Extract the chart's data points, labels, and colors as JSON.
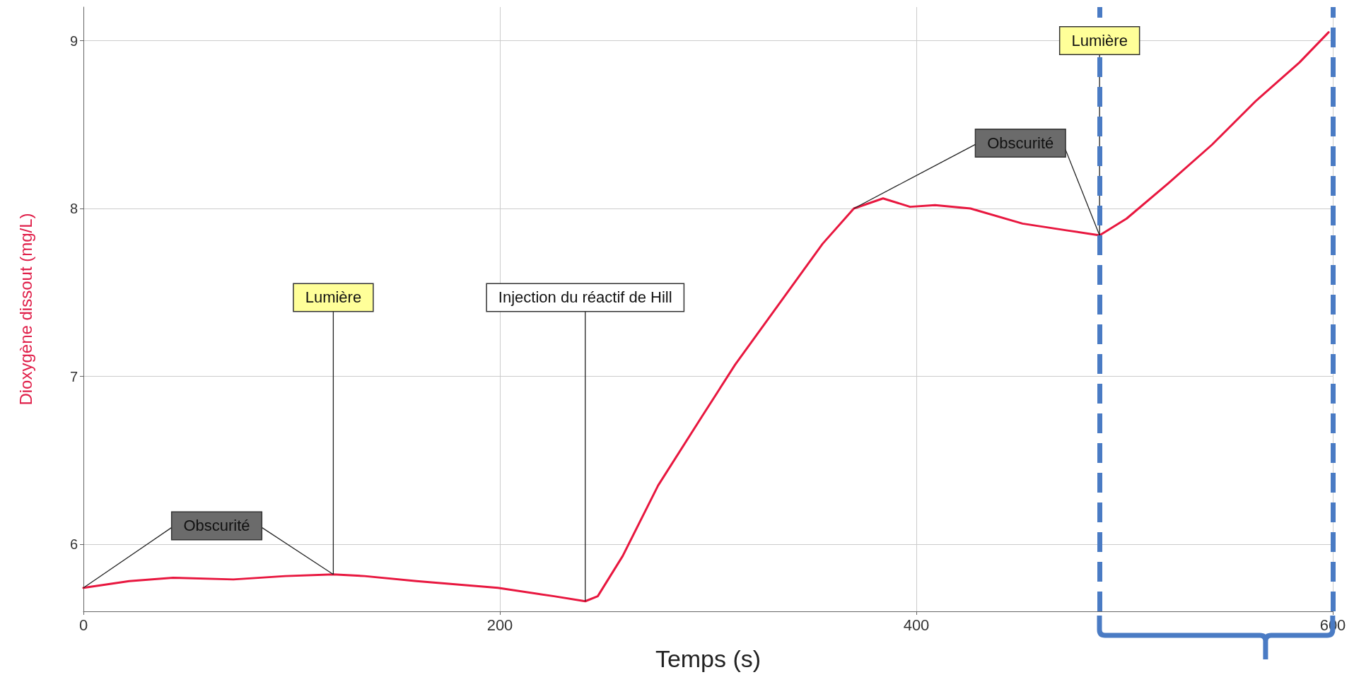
{
  "chart_data": {
    "type": "line",
    "xlabel": "Temps (s)",
    "ylabel": "Dioxygène dissout (mg/L)",
    "xlim": [
      0,
      600
    ],
    "xticks": [
      0,
      200,
      400,
      600
    ],
    "ylim": [
      5.6,
      9.2
    ],
    "yticks": [
      6,
      7,
      8,
      9
    ],
    "grid": true,
    "marker": "none",
    "line_style": "solid",
    "series": [
      {
        "color": "#e8173f",
        "x": [
          0,
          22,
          43,
          72,
          97,
          120,
          135,
          160,
          199,
          226,
          241,
          247,
          259,
          276,
          297,
          313,
          334,
          355,
          370,
          384,
          397,
          409,
          426,
          451,
          472,
          488,
          501,
          521,
          542,
          563,
          584,
          598
        ],
        "values": [
          5.74,
          5.78,
          5.8,
          5.79,
          5.81,
          5.82,
          5.81,
          5.78,
          5.74,
          5.69,
          5.66,
          5.69,
          5.93,
          6.35,
          6.76,
          7.07,
          7.43,
          7.79,
          8.0,
          8.06,
          8.01,
          8.02,
          8.0,
          7.91,
          7.87,
          7.84,
          7.94,
          8.15,
          8.38,
          8.64,
          8.87,
          9.05
        ]
      }
    ],
    "annotations": [
      {
        "text": "Obscurité",
        "x": 0,
        "y": 5.74
      },
      {
        "text": "Lumière",
        "x": 120,
        "y": 5.82
      },
      {
        "text": "Injection du réactif de Hill",
        "x": 241,
        "y": 5.66
      },
      {
        "text": "Obscurité",
        "x": 370,
        "y": 8.0
      },
      {
        "text": "Lumière",
        "x": 488,
        "y": 7.84
      }
    ],
    "ref_lines": [
      {
        "axis": "x",
        "value": 488,
        "color": "#4a7bc4",
        "line_style": "dashed"
      },
      {
        "axis": "x",
        "value": 600,
        "color": "#4a7bc4",
        "line_style": "dashed"
      }
    ]
  }
}
